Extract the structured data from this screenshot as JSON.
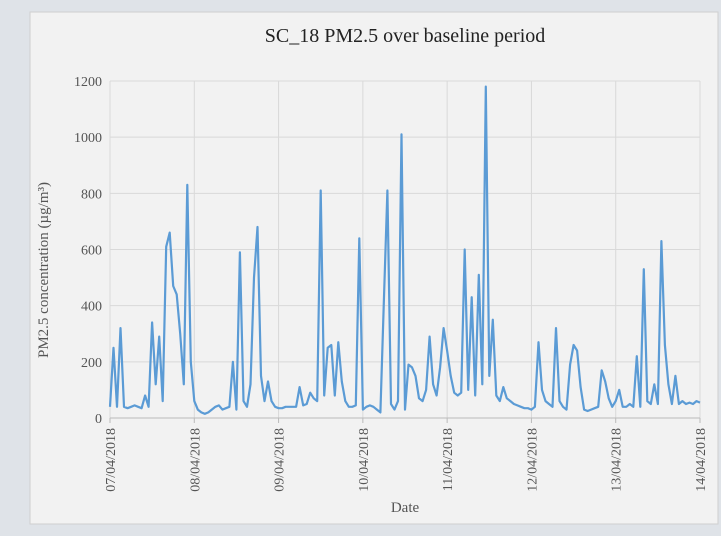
{
  "chart_data": {
    "type": "line",
    "title": "SC_18 PM2.5 over baseline period",
    "x_label": "Date",
    "y_label": "PM2.5 concentration (µg/m³)",
    "color": "#5b9bd5",
    "grid": true,
    "xlim": [
      0,
      168
    ],
    "xticks": [
      {
        "value": 0,
        "label": "07/04/2018"
      },
      {
        "value": 24,
        "label": "08/04/2018"
      },
      {
        "value": 48,
        "label": "09/04/2018"
      },
      {
        "value": 72,
        "label": "10/04/2018"
      },
      {
        "value": 96,
        "label": "11/04/2018"
      },
      {
        "value": 120,
        "label": "12/04/2018"
      },
      {
        "value": 144,
        "label": "13/04/2018"
      },
      {
        "value": 168,
        "label": "14/04/2018"
      }
    ],
    "ylim": [
      0,
      1200
    ],
    "yticks": [
      0,
      200,
      400,
      600,
      800,
      1000,
      1200
    ],
    "x": [
      0,
      1,
      2,
      3,
      4,
      5,
      6,
      7,
      8,
      9,
      10,
      11,
      12,
      13,
      14,
      15,
      16,
      17,
      18,
      19,
      20,
      21,
      22,
      23,
      24,
      25,
      26,
      27,
      28,
      29,
      30,
      31,
      32,
      33,
      34,
      35,
      36,
      37,
      38,
      39,
      40,
      41,
      42,
      43,
      44,
      45,
      46,
      47,
      48,
      49,
      50,
      51,
      52,
      53,
      54,
      55,
      56,
      57,
      58,
      59,
      60,
      61,
      62,
      63,
      64,
      65,
      66,
      67,
      68,
      69,
      70,
      71,
      72,
      73,
      74,
      75,
      76,
      77,
      78,
      79,
      80,
      81,
      82,
      83,
      84,
      85,
      86,
      87,
      88,
      89,
      90,
      91,
      92,
      93,
      94,
      95,
      96,
      97,
      98,
      99,
      100,
      101,
      102,
      103,
      104,
      105,
      106,
      107,
      108,
      109,
      110,
      111,
      112,
      113,
      114,
      115,
      116,
      117,
      118,
      119,
      120,
      121,
      122,
      123,
      124,
      125,
      126,
      127,
      128,
      129,
      130,
      131,
      132,
      133,
      134,
      135,
      136,
      137,
      138,
      139,
      140,
      141,
      142,
      143,
      144,
      145,
      146,
      147,
      148,
      149,
      150,
      151,
      152,
      153,
      154,
      155,
      156,
      157,
      158,
      159,
      160,
      161,
      162,
      163,
      164,
      165,
      166,
      167,
      168
    ],
    "values": [
      40,
      250,
      40,
      320,
      40,
      35,
      40,
      45,
      40,
      35,
      80,
      40,
      340,
      120,
      290,
      60,
      610,
      660,
      470,
      440,
      300,
      120,
      830,
      200,
      60,
      30,
      20,
      15,
      20,
      30,
      40,
      45,
      30,
      35,
      40,
      200,
      30,
      590,
      60,
      40,
      120,
      500,
      680,
      150,
      60,
      130,
      60,
      40,
      35,
      35,
      40,
      40,
      40,
      40,
      110,
      45,
      50,
      90,
      70,
      60,
      810,
      80,
      250,
      260,
      80,
      270,
      130,
      60,
      40,
      40,
      45,
      640,
      30,
      40,
      45,
      40,
      30,
      20,
      420,
      810,
      50,
      30,
      60,
      1010,
      30,
      190,
      180,
      150,
      70,
      60,
      100,
      290,
      120,
      80,
      180,
      320,
      240,
      150,
      90,
      80,
      90,
      600,
      100,
      430,
      80,
      510,
      120,
      1180,
      150,
      350,
      80,
      60,
      110,
      70,
      60,
      50,
      45,
      40,
      35,
      35,
      30,
      40,
      270,
      100,
      60,
      50,
      40,
      320,
      60,
      40,
      30,
      190,
      260,
      240,
      110,
      30,
      25,
      30,
      35,
      40,
      170,
      130,
      70,
      40,
      60,
      100,
      40,
      40,
      50,
      40,
      220,
      40,
      530,
      60,
      50,
      120,
      50,
      630,
      260,
      120,
      50,
      150,
      50,
      60,
      50,
      55,
      50,
      60,
      55
    ]
  }
}
